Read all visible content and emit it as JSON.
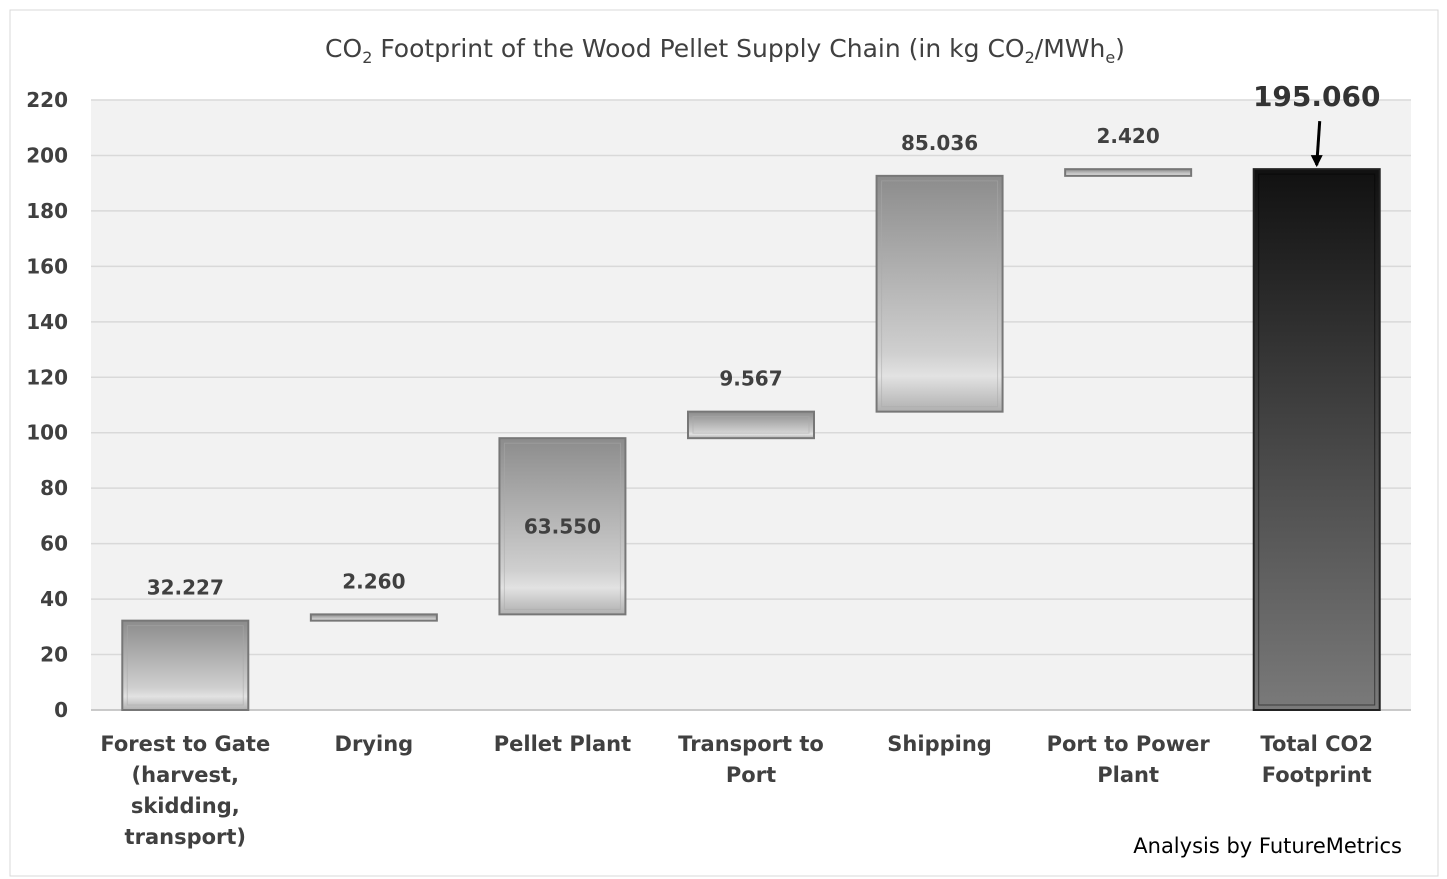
{
  "chart_data": {
    "type": "waterfall",
    "title_parts": [
      "CO",
      "2",
      " Footprint of the Wood Pellet Supply Chain (in kg CO",
      "2",
      "/MWh",
      "e",
      ")"
    ],
    "categories": [
      "Forest to Gate (harvest, skidding, transport)",
      "Drying",
      "Pellet Plant",
      "Transport to Port",
      "Shipping",
      "Port to Power Plant",
      "Total CO2 Footprint"
    ],
    "values": [
      32.227,
      2.26,
      63.55,
      9.567,
      85.036,
      2.42,
      195.06
    ],
    "value_labels": [
      "32.227",
      "2.260",
      "63.550",
      "9.567",
      "85.036",
      "2.420",
      "195.060"
    ],
    "is_total": [
      false,
      false,
      false,
      false,
      false,
      false,
      true
    ],
    "label_inside": [
      false,
      false,
      true,
      false,
      false,
      false,
      false
    ],
    "color": "#9a9a9a",
    "total_color": "#3a3a3a",
    "ylim": [
      0,
      220
    ],
    "yticks": [
      0,
      20,
      40,
      60,
      80,
      100,
      120,
      140,
      160,
      180,
      200,
      220
    ],
    "grid": true,
    "note": "Analysis by FutureMetrics"
  }
}
